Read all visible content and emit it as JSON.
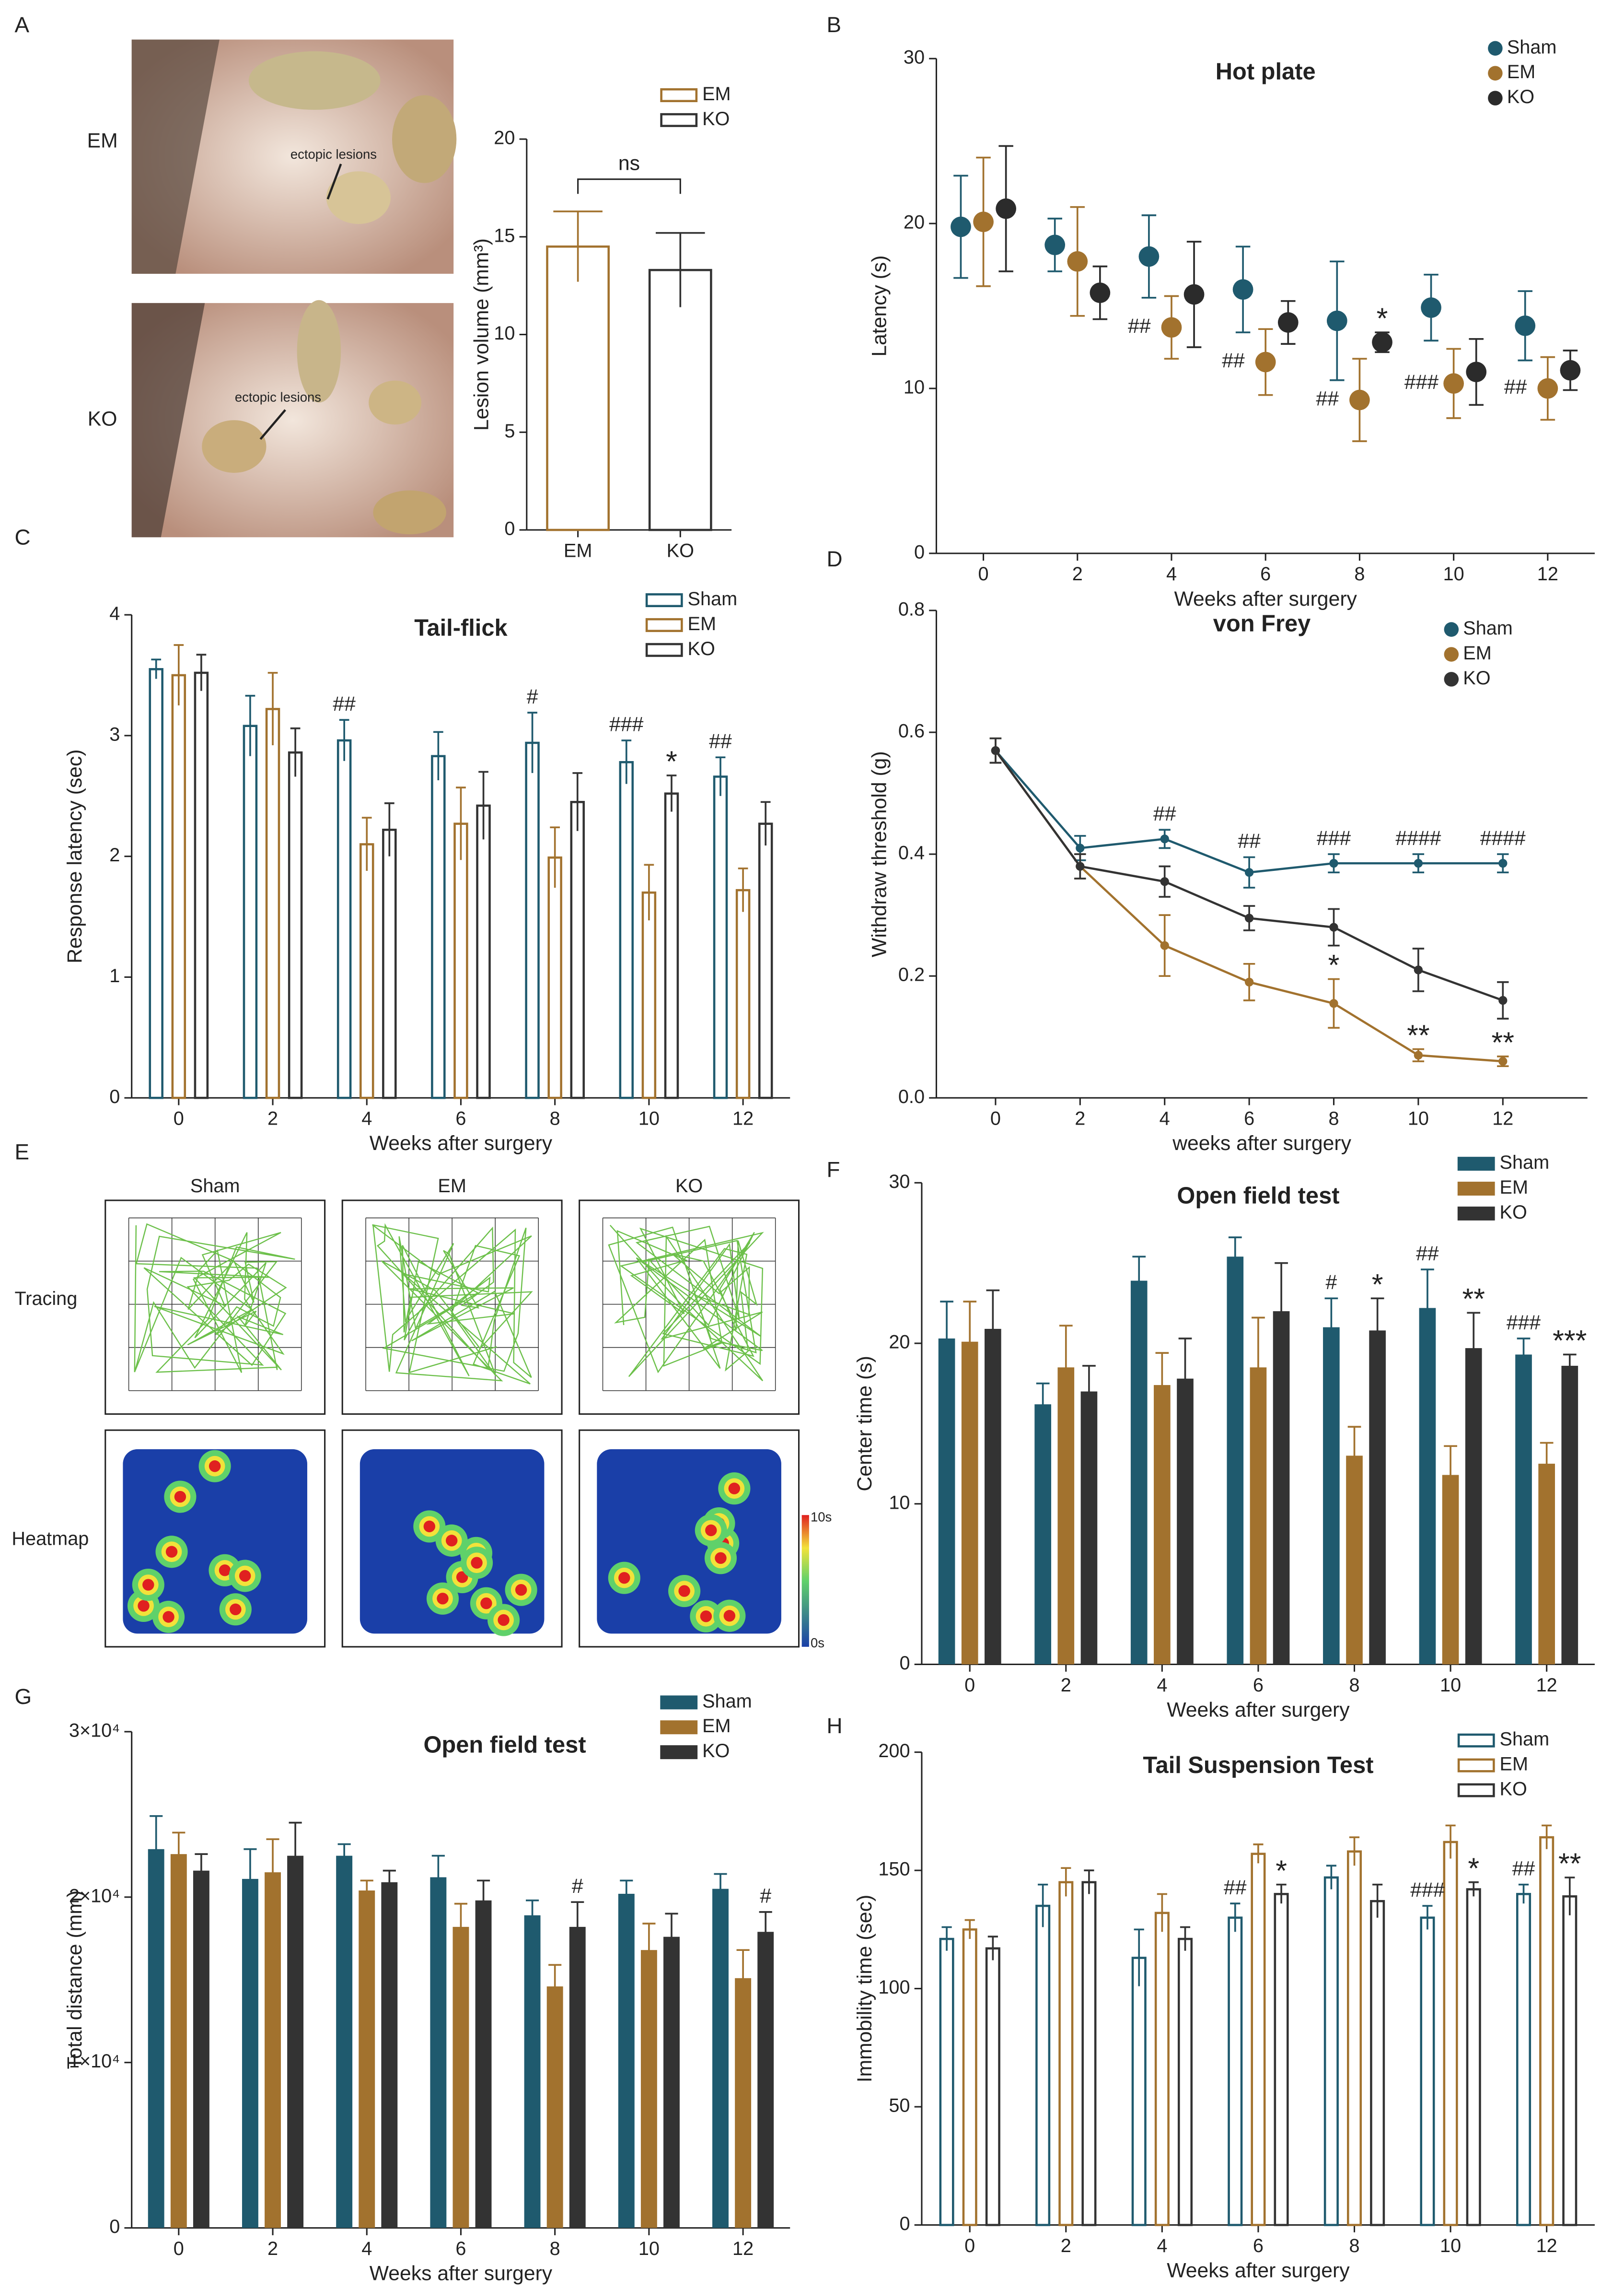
{
  "panel_letters": [
    "A",
    "B",
    "C",
    "D",
    "E",
    "F",
    "G",
    "H"
  ],
  "panel_a_images": {
    "labels": [
      "EM",
      "KO"
    ],
    "annotation": "ectopic lesions"
  },
  "panel_e": {
    "columns": [
      "Sham",
      "EM",
      "KO"
    ],
    "rows": [
      "Tracing",
      "Heatmap"
    ],
    "scale": [
      "10s",
      "0s"
    ]
  },
  "chart_data": [
    {
      "type": "bar",
      "bar_style": "hollow",
      "ylabel": "Lesion volume (mm³)",
      "categories": [
        "EM",
        "KO"
      ],
      "values": [
        14.5,
        13.3
      ],
      "errors": [
        1.8,
        1.9
      ],
      "colors": [
        "#a2722e",
        "#333333"
      ],
      "ylim": [
        0,
        20
      ],
      "yticks": [
        0,
        5,
        10,
        15,
        20
      ],
      "legend": "upper right",
      "annotations": [
        {
          "text": "ns"
        }
      ]
    },
    {
      "type": "dot",
      "title": "Hot plate",
      "xlabel": "Weeks after surgery",
      "ylabel": "Latency (s)",
      "categories": [
        "0",
        "2",
        "4",
        "6",
        "8",
        "10",
        "12"
      ],
      "ylim": [
        0,
        30
      ],
      "yticks": [
        0,
        10,
        20,
        30
      ],
      "legend": "upper right",
      "series": [
        {
          "name": "Sham",
          "color": "#1f5a6e",
          "values": [
            19.8,
            18.7,
            18.0,
            16.0,
            14.1,
            14.9,
            13.8
          ],
          "errors": [
            3.1,
            1.6,
            2.5,
            2.6,
            3.6,
            2.0,
            2.1
          ]
        },
        {
          "name": "EM",
          "color": "#a2722e",
          "values": [
            20.1,
            17.7,
            13.7,
            11.6,
            9.3,
            10.3,
            10.0
          ],
          "errors": [
            3.9,
            3.3,
            1.9,
            2.0,
            2.5,
            2.1,
            1.9
          ]
        },
        {
          "name": "KO",
          "color": "#2b2b2b",
          "values": [
            20.9,
            15.8,
            15.7,
            14.0,
            12.8,
            11.0,
            11.1
          ],
          "errors": [
            3.8,
            1.6,
            3.2,
            1.3,
            0.6,
            2.0,
            1.2
          ]
        }
      ],
      "annotations": [
        {
          "text": "##",
          "x": "4",
          "series": "EM",
          "side": "left"
        },
        {
          "text": "##",
          "x": "6",
          "series": "EM",
          "side": "left"
        },
        {
          "text": "##",
          "x": "8",
          "series": "EM",
          "side": "left"
        },
        {
          "text": "*",
          "x": "8",
          "series": "KO"
        },
        {
          "text": "###",
          "x": "10",
          "series": "EM",
          "side": "left"
        },
        {
          "text": "##",
          "x": "12",
          "series": "EM",
          "side": "left"
        }
      ]
    },
    {
      "type": "bar",
      "bar_style": "hollow",
      "title": "Tail-flick",
      "xlabel": "Weeks after surgery",
      "ylabel": "Response latency (sec)",
      "categories": [
        "0",
        "2",
        "4",
        "6",
        "8",
        "10",
        "12"
      ],
      "ylim": [
        0,
        4
      ],
      "yticks": [
        0,
        1,
        2,
        3,
        4
      ],
      "legend": "upper right",
      "series": [
        {
          "name": "Sham",
          "color": "#1f5a6e",
          "values": [
            3.55,
            3.08,
            2.96,
            2.83,
            2.94,
            2.78,
            2.66
          ],
          "errors": [
            0.08,
            0.25,
            0.17,
            0.2,
            0.25,
            0.18,
            0.16
          ]
        },
        {
          "name": "EM",
          "color": "#a2722e",
          "values": [
            3.5,
            3.22,
            2.1,
            2.27,
            1.99,
            1.7,
            1.72
          ],
          "errors": [
            0.25,
            0.3,
            0.22,
            0.3,
            0.25,
            0.23,
            0.18
          ]
        },
        {
          "name": "KO",
          "color": "#333333",
          "values": [
            3.52,
            2.86,
            2.22,
            2.42,
            2.45,
            2.52,
            2.27
          ],
          "errors": [
            0.15,
            0.2,
            0.22,
            0.28,
            0.24,
            0.15,
            0.18
          ]
        }
      ],
      "annotations": [
        {
          "text": "##",
          "x": "4",
          "series": "Sham"
        },
        {
          "text": "#",
          "x": "8",
          "series": "Sham"
        },
        {
          "text": "###",
          "x": "10",
          "series": "Sham"
        },
        {
          "text": "*",
          "x": "10",
          "series": "KO"
        },
        {
          "text": "##",
          "x": "12",
          "series": "Sham"
        }
      ]
    },
    {
      "type": "line",
      "title": "von Frey",
      "xlabel": "weeks after surgery",
      "ylabel": "Withdraw threshold (g)",
      "x": [
        0,
        2,
        4,
        6,
        8,
        10,
        12
      ],
      "xlim": [
        -1.4,
        14
      ],
      "xticks": [
        0,
        2,
        4,
        6,
        8,
        10,
        12
      ],
      "ylim": [
        0,
        0.8
      ],
      "yticks": [
        {
          "value": 0,
          "label": "0.0"
        },
        0.2,
        0.4,
        0.6,
        0.8
      ],
      "legend": "upper right",
      "series": [
        {
          "name": "Sham",
          "color": "#1f5a6e",
          "values": [
            0.57,
            0.41,
            0.425,
            0.37,
            0.385,
            0.385,
            0.385
          ],
          "errors": [
            0.02,
            0.02,
            0.015,
            0.025,
            0.015,
            0.015,
            0.015
          ]
        },
        {
          "name": "EM",
          "color": "#a2722e",
          "values": [
            0.57,
            0.38,
            0.25,
            0.19,
            0.155,
            0.07,
            0.06
          ],
          "errors": [
            0.02,
            0.02,
            0.05,
            0.03,
            0.04,
            0.01,
            0.008
          ]
        },
        {
          "name": "KO",
          "color": "#333333",
          "values": [
            0.57,
            0.38,
            0.355,
            0.295,
            0.28,
            0.21,
            0.16
          ],
          "errors": [
            0.02,
            0.02,
            0.025,
            0.02,
            0.03,
            0.035,
            0.03
          ]
        }
      ],
      "annotations": [
        {
          "text": "##",
          "x": 4,
          "series": "Sham"
        },
        {
          "text": "##",
          "x": 6,
          "series": "Sham"
        },
        {
          "text": "###",
          "x": 8,
          "series": "Sham"
        },
        {
          "text": "####",
          "x": 10,
          "series": "Sham"
        },
        {
          "text": "####",
          "x": 12,
          "series": "Sham"
        },
        {
          "text": "*",
          "x": 8,
          "series": "EM"
        },
        {
          "text": "**",
          "x": 10,
          "series": "EM"
        },
        {
          "text": "**",
          "x": 12,
          "series": "EM"
        }
      ]
    },
    {
      "type": "bar",
      "bar_style": "solid",
      "title": "Open field test",
      "xlabel": "Weeks after surgery",
      "ylabel": "Center time (s)",
      "categories": [
        "0",
        "2",
        "4",
        "6",
        "8",
        "10",
        "12"
      ],
      "ylim": [
        0,
        30
      ],
      "yticks": [
        0,
        10,
        20,
        30
      ],
      "legend": "upper right",
      "series": [
        {
          "name": "Sham",
          "color": "#1f5a6e",
          "values": [
            20.3,
            16.2,
            23.9,
            25.4,
            21.0,
            22.2,
            19.3
          ],
          "errors": [
            2.3,
            1.3,
            1.5,
            1.2,
            1.8,
            2.4,
            1.0
          ]
        },
        {
          "name": "EM",
          "color": "#a2722e",
          "values": [
            20.1,
            18.5,
            17.4,
            18.5,
            13.0,
            11.8,
            12.5
          ],
          "errors": [
            2.5,
            2.6,
            2.0,
            3.1,
            1.8,
            1.8,
            1.3
          ]
        },
        {
          "name": "KO",
          "color": "#333333",
          "values": [
            20.9,
            17.0,
            17.8,
            22.0,
            20.8,
            19.7,
            18.6
          ],
          "errors": [
            2.4,
            1.6,
            2.5,
            3.0,
            2.0,
            2.2,
            0.7
          ]
        }
      ],
      "annotations": [
        {
          "text": "#",
          "x": "8",
          "series": "Sham"
        },
        {
          "text": "*",
          "x": "8",
          "series": "KO"
        },
        {
          "text": "##",
          "x": "10",
          "series": "Sham"
        },
        {
          "text": "**",
          "x": "10",
          "series": "KO"
        },
        {
          "text": "###",
          "x": "12",
          "series": "Sham"
        },
        {
          "text": "***",
          "x": "12",
          "series": "KO"
        }
      ]
    },
    {
      "type": "bar",
      "bar_style": "solid",
      "title": "Open field test",
      "xlabel": "Weeks after surgery",
      "ylabel": "Total distance (mm)",
      "categories": [
        "0",
        "2",
        "4",
        "6",
        "8",
        "10",
        "12"
      ],
      "ylim": [
        0,
        30000
      ],
      "yticks": [
        0,
        {
          "value": 10000,
          "label": "1×10⁴"
        },
        {
          "value": 20000,
          "label": "2×10⁴"
        },
        {
          "value": 30000,
          "label": "3×10⁴"
        }
      ],
      "legend": "upper right",
      "series": [
        {
          "name": "Sham",
          "color": "#1f5a6e",
          "values": [
            22900,
            21100,
            22500,
            21200,
            18900,
            20200,
            20500
          ],
          "errors": [
            2000,
            1800,
            700,
            1300,
            900,
            800,
            900
          ]
        },
        {
          "name": "EM",
          "color": "#a2722e",
          "values": [
            22600,
            21500,
            20400,
            18200,
            14600,
            16800,
            15100
          ],
          "errors": [
            1300,
            2000,
            600,
            1400,
            1300,
            1600,
            1700
          ]
        },
        {
          "name": "KO",
          "color": "#333333",
          "values": [
            21600,
            22500,
            20900,
            19800,
            18200,
            17600,
            17900
          ],
          "errors": [
            1000,
            2000,
            700,
            1200,
            1500,
            1400,
            1200
          ]
        }
      ],
      "annotations": [
        {
          "text": "#",
          "x": "8",
          "series": "KO"
        },
        {
          "text": "#",
          "x": "12",
          "series": "KO"
        }
      ]
    },
    {
      "type": "bar",
      "bar_style": "hollow",
      "title": "Tail Suspension Test",
      "xlabel": "Weeks after surgery",
      "ylabel": "Immobility time (sec)",
      "categories": [
        "0",
        "2",
        "4",
        "6",
        "8",
        "10",
        "12"
      ],
      "ylim": [
        0,
        200
      ],
      "yticks": [
        0,
        50,
        100,
        150,
        200
      ],
      "legend": "upper right",
      "series": [
        {
          "name": "Sham",
          "color": "#1f5a6e",
          "values": [
            121,
            135,
            113,
            130,
            147,
            130,
            140
          ],
          "errors": [
            5,
            9,
            12,
            6,
            5,
            5,
            4
          ]
        },
        {
          "name": "EM",
          "color": "#a2722e",
          "values": [
            125,
            145,
            132,
            157,
            158,
            162,
            164
          ],
          "errors": [
            4,
            6,
            8,
            4,
            6,
            7,
            5
          ]
        },
        {
          "name": "KO",
          "color": "#333333",
          "values": [
            117,
            145,
            121,
            140,
            137,
            142,
            139
          ],
          "errors": [
            5,
            5,
            5,
            4,
            7,
            3,
            8
          ]
        }
      ],
      "annotations": [
        {
          "text": "##",
          "x": "6",
          "series": "Sham"
        },
        {
          "text": "*",
          "x": "6",
          "series": "KO"
        },
        {
          "text": "###",
          "x": "10",
          "series": "Sham"
        },
        {
          "text": "*",
          "x": "10",
          "series": "KO"
        },
        {
          "text": "##",
          "x": "12",
          "series": "Sham"
        },
        {
          "text": "**",
          "x": "12",
          "series": "KO"
        }
      ]
    }
  ]
}
